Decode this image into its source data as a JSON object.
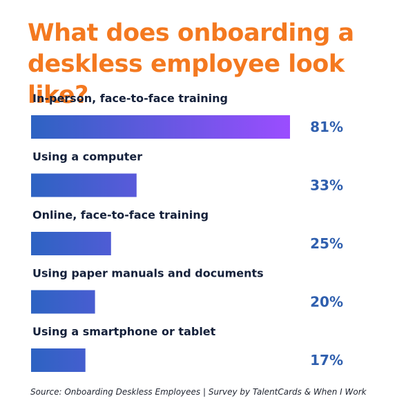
{
  "title": "What does onboarding a deskless employee look like?",
  "source": "Source: Onboarding Deskless Employees | Survey by TalentCards & When I Work",
  "colors": {
    "title": "#F47920",
    "bar_start": "#2D63C2",
    "bar_end": "#9B4DFF",
    "category_text": "#14203A",
    "value_text": "#2F5FAE"
  },
  "chart_data": {
    "type": "bar",
    "orientation": "horizontal",
    "categories": [
      "In-person, face-to-face training",
      "Using a computer",
      "Online, face-to-face training",
      "Using paper manuals and documents",
      "Using a smartphone or tablet"
    ],
    "values": [
      81,
      33,
      25,
      20,
      17
    ],
    "value_labels": [
      "81%",
      "33%",
      "25%",
      "20%",
      "17%"
    ],
    "xlim": [
      0,
      100
    ],
    "grid": false,
    "legend": "none"
  }
}
